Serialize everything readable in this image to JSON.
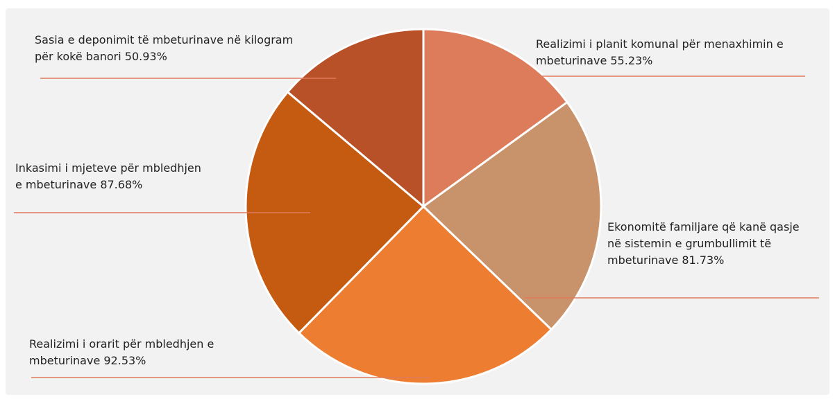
{
  "chart_data": {
    "type": "pie",
    "categories": [
      "Realizimi i planit komunal për menaxhimin e mbeturinave",
      "Ekonomitë familjare që kanë qasje në sistemin e grumbullimit të mbeturinave",
      "Realizimi i orarit për mbledhjen e mbeturinave",
      "Inkasimi i mjeteve për mbledhjen e mbeturinave",
      "Sasia e deponimit të mbeturinave në kilogram për kokë banori"
    ],
    "values": [
      55.23,
      81.73,
      92.53,
      87.68,
      50.93
    ],
    "value_labels": [
      "55.23%",
      "81.73%",
      "92.53%",
      "87.68%",
      "50.93%"
    ],
    "colors": [
      "#dd7c5a",
      "#c8926a",
      "#ed7d31",
      "#c55a11",
      "#b85028"
    ]
  }
}
